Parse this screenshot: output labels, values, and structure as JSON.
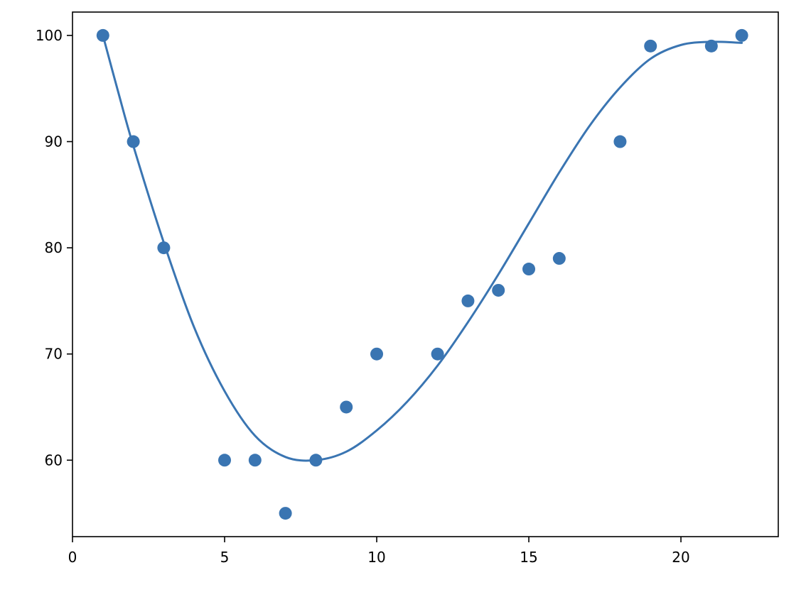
{
  "chart_data": {
    "type": "scatter",
    "title": "",
    "xlabel": "",
    "ylabel": "",
    "xlim": [
      0,
      23.2
    ],
    "ylim": [
      52.8,
      102.2
    ],
    "xticks": [
      0,
      5,
      10,
      15,
      20
    ],
    "yticks": [
      60,
      70,
      80,
      90,
      100
    ],
    "grid": false,
    "legend": "none",
    "colors": {
      "points": "#3a75b2",
      "fit_line": "#3a75b2"
    },
    "series": [
      {
        "type": "scatter",
        "x": [
          1,
          2,
          3,
          5,
          6,
          7,
          8,
          9,
          10,
          12,
          13,
          14,
          15,
          16,
          18,
          19,
          21,
          22
        ],
        "y": [
          100,
          90,
          80,
          60,
          60,
          55,
          60,
          65,
          70,
          70,
          75,
          76,
          78,
          79,
          90,
          99,
          99,
          100
        ]
      },
      {
        "type": "line",
        "x": [
          1,
          1.5,
          2,
          3,
          4,
          5,
          6,
          7,
          8,
          9,
          10,
          11,
          12,
          13,
          14,
          15,
          16,
          17,
          18,
          19,
          20,
          21,
          22
        ],
        "y": [
          100,
          94.7,
          89.6,
          80.5,
          72.5,
          66.5,
          62.3,
          60.3,
          60,
          60.8,
          62.8,
          65.5,
          68.9,
          73,
          77.5,
          82.3,
          87.1,
          91.5,
          95.1,
          97.8,
          99.1,
          99.4,
          99.3
        ]
      }
    ]
  }
}
